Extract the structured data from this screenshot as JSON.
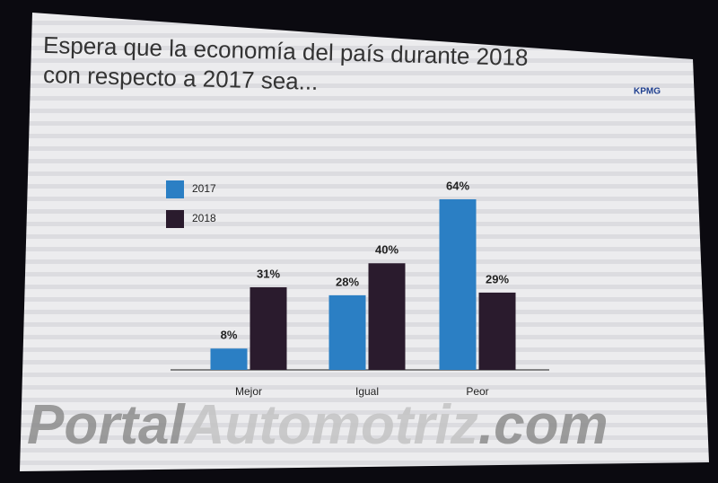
{
  "chart_data": {
    "type": "bar",
    "title": [
      "Espera que la economía del país durante 2018",
      "con respecto a 2017 sea..."
    ],
    "logo": "KPMG",
    "categories": [
      "Mejor",
      "Igual",
      "Peor"
    ],
    "series": [
      {
        "name": "2017",
        "color": "#2b7fc4",
        "values": [
          8,
          28,
          64
        ],
        "value_labels": [
          "8%",
          "28%",
          "64%"
        ]
      },
      {
        "name": "2018",
        "color": "#2a1b2d",
        "values": [
          31,
          40,
          29
        ],
        "value_labels": [
          "31%",
          "40%",
          "29%"
        ]
      }
    ]
  },
  "watermark": [
    "Portal",
    "Automotriz",
    ".com"
  ]
}
